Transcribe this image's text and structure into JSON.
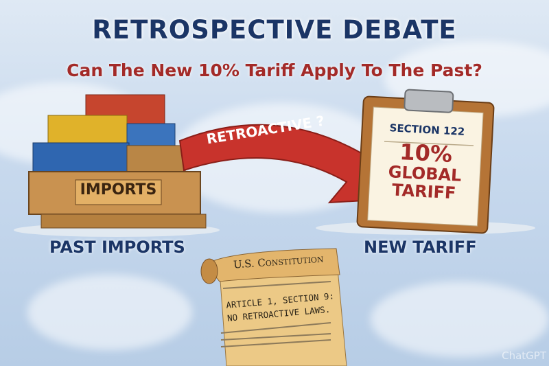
{
  "title": "RETROSPECTIVE DEBATE",
  "subtitle": "Can The New 10% Tariff Apply To The Past?",
  "left": {
    "crate_label": "IMPORTS",
    "caption": "PAST IMPORTS"
  },
  "arrow": {
    "label": "RETROACTIVE ?",
    "color": "#c8332c"
  },
  "clipboard": {
    "header": "SECTION 122",
    "line1": "10%",
    "line2": "GLOBAL",
    "line3": "TARIFF",
    "caption": "NEW TARIFF"
  },
  "scroll": {
    "title": "U.S. Constitution",
    "line1": "ARTICLE 1, SECTION 9:",
    "line2": "NO RETROACTIVE LAWS."
  },
  "watermark": "ChatGPT",
  "colors": {
    "navy": "#1b3566",
    "red": "#a32a28"
  }
}
